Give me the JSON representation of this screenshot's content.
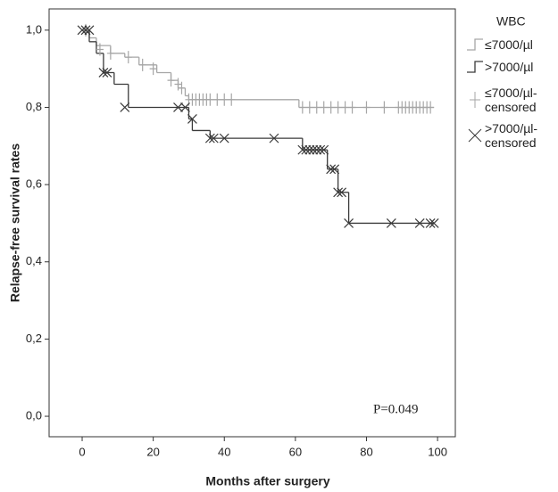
{
  "chart_data": {
    "type": "step",
    "y_label": "Relapse-free survival rates",
    "x_label": "Months after surgery",
    "annotation": "P=0.049",
    "legend_title": "WBC",
    "xlim": [
      -9.3,
      105
    ],
    "ylim": [
      -0.053,
      1.055
    ],
    "xticks": [
      0,
      20,
      40,
      60,
      80,
      100
    ],
    "yticks": [
      {
        "value": 0,
        "label": "0,0"
      },
      {
        "value": 0.2,
        "label": "0,2"
      },
      {
        "value": 0.4,
        "label": "0,4"
      },
      {
        "value": 0.6,
        "label": "0,6"
      },
      {
        "value": 0.8,
        "label": "0,8"
      },
      {
        "value": 1,
        "label": "1,0"
      }
    ],
    "series": [
      {
        "name": "≤7000/µl",
        "color": "#a6a6a6",
        "marker": "line",
        "x": [
          0,
          2,
          4,
          8,
          12,
          16,
          21,
          25,
          27,
          29,
          30,
          61,
          99
        ],
        "values": [
          1,
          0.98,
          0.96,
          0.94,
          0.93,
          0.91,
          0.89,
          0.87,
          0.85,
          0.83,
          0.82,
          0.8,
          0.8
        ]
      },
      {
        "name": ">7000/µl",
        "color": "#3a3a3a",
        "marker": "line",
        "x": [
          0,
          2,
          4,
          6,
          9,
          13,
          30,
          31,
          36,
          62,
          69,
          72,
          75,
          99
        ],
        "values": [
          1,
          0.97,
          0.94,
          0.89,
          0.86,
          0.8,
          0.77,
          0.74,
          0.72,
          0.69,
          0.64,
          0.58,
          0.5,
          0.5
        ]
      },
      {
        "name": "≤7000/µl-censored",
        "color": "#a6a6a6",
        "marker": "plus",
        "x": [
          1,
          5,
          8,
          13,
          17,
          20,
          25,
          27,
          28,
          30,
          31,
          32,
          33,
          34,
          35,
          36,
          38,
          40,
          42,
          62,
          64,
          66,
          68,
          70,
          72,
          74,
          76,
          80,
          85,
          89,
          90,
          91,
          92,
          93,
          94,
          95,
          96,
          97,
          98
        ],
        "values": [
          1,
          0.95,
          0.94,
          0.93,
          0.91,
          0.9,
          0.87,
          0.86,
          0.85,
          0.82,
          0.82,
          0.82,
          0.82,
          0.82,
          0.82,
          0.82,
          0.82,
          0.82,
          0.82,
          0.8,
          0.8,
          0.8,
          0.8,
          0.8,
          0.8,
          0.8,
          0.8,
          0.8,
          0.8,
          0.8,
          0.8,
          0.8,
          0.8,
          0.8,
          0.8,
          0.8,
          0.8,
          0.8,
          0.8
        ]
      },
      {
        "name": ">7000/µl-censored",
        "color": "#3a3a3a",
        "marker": "cross",
        "x": [
          0,
          1,
          2,
          6,
          7,
          12,
          27,
          29,
          31,
          36,
          37,
          40,
          54,
          62,
          63,
          64,
          65,
          66,
          67,
          68,
          70,
          71,
          72,
          73,
          75,
          87,
          95,
          98,
          99
        ],
        "values": [
          1,
          1,
          1,
          0.89,
          0.89,
          0.8,
          0.8,
          0.8,
          0.77,
          0.72,
          0.72,
          0.72,
          0.72,
          0.69,
          0.69,
          0.69,
          0.69,
          0.69,
          0.69,
          0.69,
          0.64,
          0.64,
          0.58,
          0.58,
          0.5,
          0.5,
          0.5,
          0.5,
          0.5
        ]
      }
    ]
  }
}
